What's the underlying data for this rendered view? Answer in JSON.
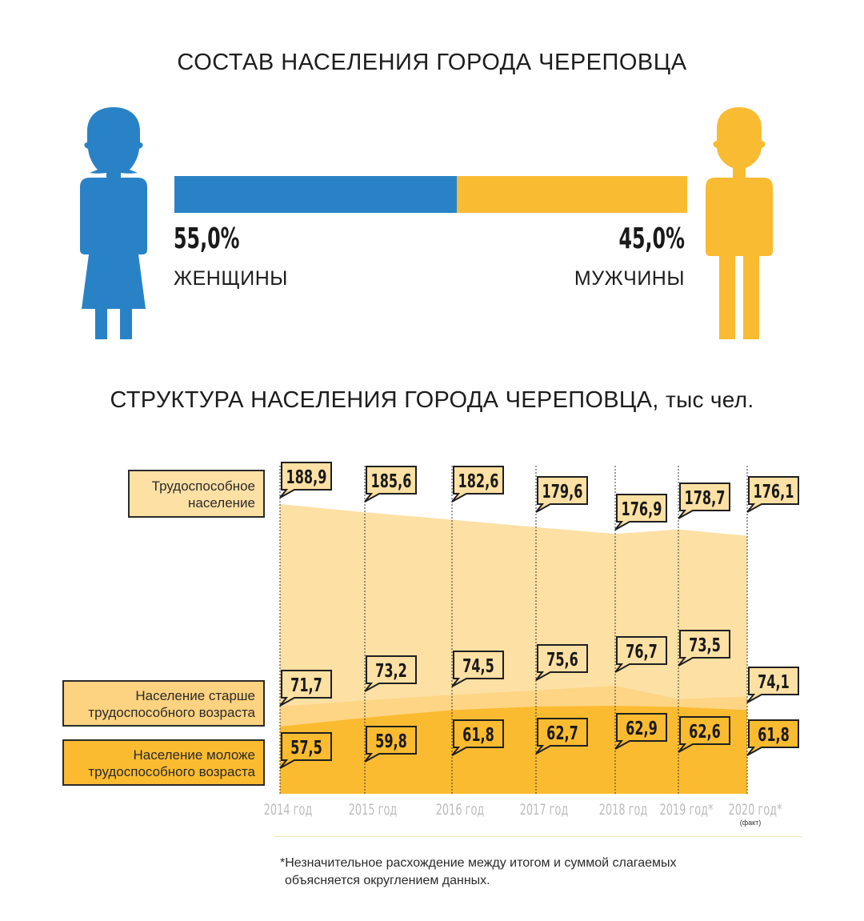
{
  "gender_section": {
    "title": "СОСТАВ НАСЕЛЕНИЯ ГОРОДА ЧЕРЕПОВЦА",
    "women": {
      "percent": "55,0%",
      "label": "ЖЕНЩИНЫ",
      "share": 55.0,
      "color": "#2a82c6"
    },
    "men": {
      "percent": "45,0%",
      "label": "МУЖЧИНЫ",
      "share": 45.0,
      "color": "#f9bb32"
    }
  },
  "structure_section": {
    "title": "СТРУКТУРА НАСЕЛЕНИЯ ГОРОДА ЧЕРЕПОВЦА,",
    "unit": "тыс чел.",
    "note_line1": "*Незначительное расхождение между итогом и суммой слагаемых",
    "note_line2": "объясняется округлением данных."
  },
  "chart_data": {
    "type": "area",
    "title": "СТРУКТУРА НАСЕЛЕНИЯ ГОРОДА ЧЕРЕПОВЦА, тыс чел.",
    "categories": [
      "2014 год",
      "2015 год",
      "2016 год",
      "2017 год",
      "2018 год",
      "2019 год*",
      "2020 год*"
    ],
    "category_notes": [
      "",
      "",
      "",
      "",
      "",
      "",
      "(факт)"
    ],
    "series": [
      {
        "name": "Трудоспособное население",
        "label_line1": "Трудоспособное",
        "label_line2": "население",
        "values": [
          188.9,
          185.6,
          182.6,
          179.6,
          176.9,
          178.7,
          176.1
        ],
        "labels": [
          "188,9",
          "185,6",
          "182,6",
          "179,6",
          "176,9",
          "178,7",
          "176,1"
        ],
        "color": "#fde0a4"
      },
      {
        "name": "Население старше трудоспособного возраста",
        "label_line1": "Население старше",
        "label_line2": "трудоспособного возраста",
        "values": [
          71.7,
          73.2,
          74.5,
          75.6,
          76.7,
          73.5,
          74.1
        ],
        "labels": [
          "71,7",
          "73,2",
          "74,5",
          "75,6",
          "76,7",
          "73,5",
          "74,1"
        ],
        "color": "#fdd280"
      },
      {
        "name": "Население моложе трудоспособного возраста",
        "label_line1": "Население моложе",
        "label_line2": "трудоспособного возраста",
        "values": [
          57.5,
          59.8,
          61.8,
          62.7,
          62.9,
          62.6,
          61.8
        ],
        "labels": [
          "57,5",
          "59,8",
          "61,8",
          "62,7",
          "62,9",
          "62,6",
          "61,8"
        ],
        "color": "#fbbb30"
      }
    ]
  }
}
